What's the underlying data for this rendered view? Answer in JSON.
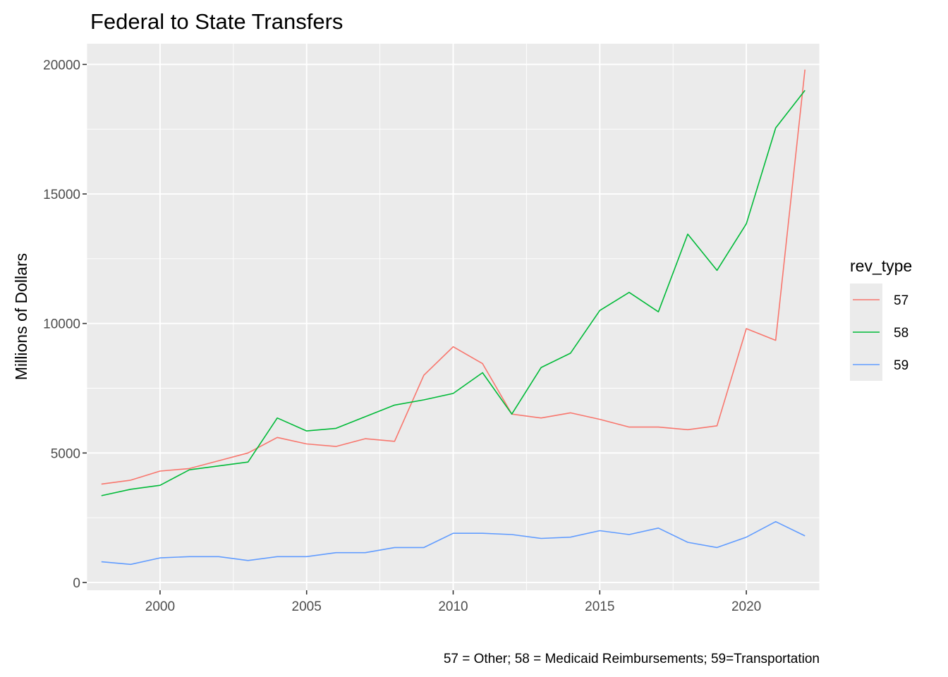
{
  "chart_data": {
    "type": "line",
    "title": "Federal to State Transfers",
    "xlabel": "",
    "ylabel": "Millions of Dollars",
    "caption": "57 = Other; 58 = Medicaid Reimbursements; 59=Transportation",
    "xlim": [
      1997.5,
      2022.5
    ],
    "ylim": [
      -300,
      20800
    ],
    "x_ticks": [
      2000,
      2005,
      2010,
      2015,
      2020
    ],
    "y_ticks": [
      0,
      5000,
      10000,
      15000,
      20000
    ],
    "x_tick_labels": [
      "2000",
      "2005",
      "2010",
      "2015",
      "2020"
    ],
    "y_tick_labels": [
      "0",
      "5000",
      "10000",
      "15000",
      "20000"
    ],
    "grid": true,
    "legend": {
      "title": "rev_type",
      "position": "right"
    },
    "x": [
      1998,
      1999,
      2000,
      2001,
      2002,
      2003,
      2004,
      2005,
      2006,
      2007,
      2008,
      2009,
      2010,
      2011,
      2012,
      2013,
      2014,
      2015,
      2016,
      2017,
      2018,
      2019,
      2020,
      2021,
      2022
    ],
    "series": [
      {
        "name": "57",
        "color": "#F8766D",
        "values": [
          3800,
          3950,
          4300,
          4400,
          4700,
          5000,
          5600,
          5350,
          5250,
          5550,
          5450,
          8000,
          9100,
          8450,
          6500,
          6350,
          6550,
          6300,
          6000,
          6000,
          5900,
          6050,
          9800,
          9350,
          19800
        ]
      },
      {
        "name": "58",
        "color": "#00BA38",
        "values": [
          3350,
          3600,
          3750,
          4350,
          4500,
          4650,
          6350,
          5850,
          5950,
          6400,
          6850,
          7050,
          7300,
          8100,
          6500,
          8300,
          8850,
          10500,
          11200,
          10450,
          13450,
          12050,
          13850,
          17550,
          19000
        ]
      },
      {
        "name": "59",
        "color": "#619CFF",
        "values": [
          800,
          700,
          950,
          1000,
          1000,
          850,
          1000,
          1000,
          1150,
          1150,
          1350,
          1350,
          1900,
          1900,
          1850,
          1700,
          1750,
          2000,
          1850,
          2100,
          1550,
          1350,
          1750,
          2350,
          1800
        ]
      }
    ]
  }
}
